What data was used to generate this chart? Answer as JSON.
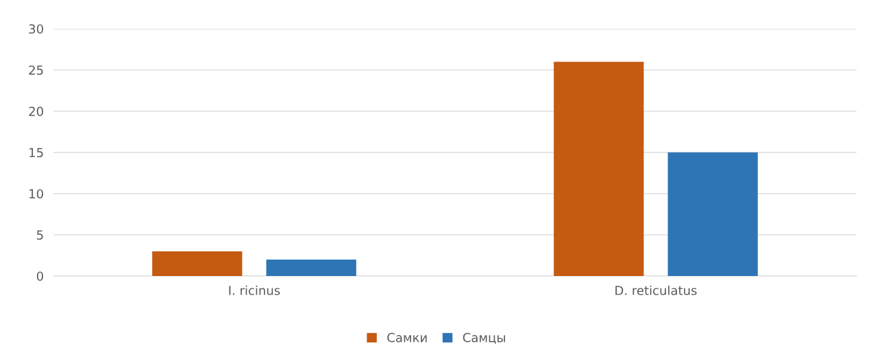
{
  "chart_data": {
    "type": "bar",
    "categories": [
      "I. ricinus",
      "D. reticulatus"
    ],
    "series": [
      {
        "name": "Самки",
        "color": "#c55a11",
        "values": [
          3,
          26
        ]
      },
      {
        "name": "Самцы",
        "color": "#2e75b6",
        "values": [
          2,
          15
        ]
      }
    ],
    "ylim": [
      0,
      30
    ],
    "yticks": [
      0,
      5,
      10,
      15,
      20,
      25,
      30
    ],
    "grid": "y",
    "legend": "bottom"
  }
}
